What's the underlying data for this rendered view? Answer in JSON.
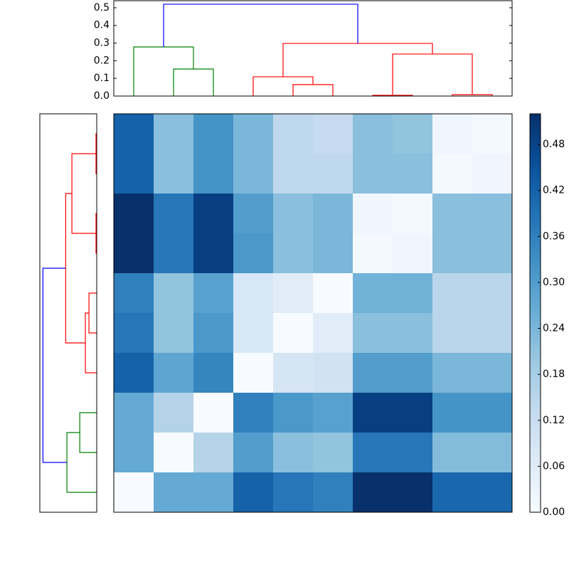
{
  "chart_data": [
    {
      "type": "dendrogram",
      "orientation": "top",
      "xlim": [
        0,
        100
      ],
      "ylim": [
        0,
        0.54
      ],
      "yticks": [
        {
          "value": 0,
          "label": "0.0"
        },
        {
          "value": 0.1,
          "label": "0.1"
        },
        {
          "value": 0.2,
          "label": "0.2"
        },
        {
          "value": 0.3,
          "label": "0.3"
        },
        {
          "value": 0.4,
          "label": "0.4"
        },
        {
          "value": 0.5,
          "label": "0.5"
        }
      ],
      "links": [
        {
          "color": "#008000",
          "icoord": [
            15,
            15,
            25,
            25
          ],
          "dcoord": [
            0,
            0.153,
            0.153,
            0
          ]
        },
        {
          "color": "#008000",
          "icoord": [
            5,
            5,
            20,
            20
          ],
          "dcoord": [
            0,
            0.278,
            0.278,
            0.153
          ]
        },
        {
          "color": "#ff0000",
          "icoord": [
            45,
            45,
            55,
            55
          ],
          "dcoord": [
            0,
            0.065,
            0.065,
            0
          ]
        },
        {
          "color": "#ff0000",
          "icoord": [
            35,
            35,
            50,
            50
          ],
          "dcoord": [
            0,
            0.109,
            0.109,
            0.065
          ]
        },
        {
          "color": "#ff0000",
          "icoord": [
            65,
            65,
            75,
            75
          ],
          "dcoord": [
            0,
            0.004,
            0.004,
            0
          ]
        },
        {
          "color": "#ff0000",
          "icoord": [
            85,
            85,
            95,
            95
          ],
          "dcoord": [
            0,
            0.008,
            0.008,
            0
          ]
        },
        {
          "color": "#ff0000",
          "icoord": [
            70,
            70,
            90,
            90
          ],
          "dcoord": [
            0.004,
            0.238,
            0.238,
            0.008
          ]
        },
        {
          "color": "#ff0000",
          "icoord": [
            42.5,
            42.5,
            80,
            80
          ],
          "dcoord": [
            0.109,
            0.298,
            0.298,
            0.238
          ]
        },
        {
          "color": "#0000ff",
          "icoord": [
            12.5,
            12.5,
            61.25,
            61.25
          ],
          "dcoord": [
            0.278,
            0.52,
            0.52,
            0.298
          ]
        }
      ]
    },
    {
      "type": "dendrogram",
      "orientation": "left",
      "xlim": [
        0.55,
        0
      ],
      "ylim": [
        0,
        100
      ],
      "links": [
        {
          "color": "#ff0000",
          "icoord": [
            85,
            85,
            95,
            95
          ],
          "dcoord": [
            0,
            0.007,
            0.007,
            0
          ]
        },
        {
          "color": "#ff0000",
          "icoord": [
            65,
            65,
            75,
            75
          ],
          "dcoord": [
            0,
            0.007,
            0.007,
            0
          ]
        },
        {
          "color": "#ff0000",
          "icoord": [
            70,
            70,
            90,
            90
          ],
          "dcoord": [
            0.007,
            0.24,
            0.24,
            0.007
          ]
        },
        {
          "color": "#ff0000",
          "icoord": [
            45,
            45,
            55,
            55
          ],
          "dcoord": [
            0,
            0.075,
            0.075,
            0
          ]
        },
        {
          "color": "#ff0000",
          "icoord": [
            35,
            35,
            50,
            50
          ],
          "dcoord": [
            0,
            0.11,
            0.11,
            0.075
          ]
        },
        {
          "color": "#ff0000",
          "icoord": [
            42.5,
            42.5,
            80,
            80
          ],
          "dcoord": [
            0.11,
            0.3,
            0.3,
            0.24
          ]
        },
        {
          "color": "#008000",
          "icoord": [
            15,
            15,
            25,
            25
          ],
          "dcoord": [
            0,
            0.164,
            0.164,
            0
          ]
        },
        {
          "color": "#008000",
          "icoord": [
            5,
            5,
            20,
            20
          ],
          "dcoord": [
            0,
            0.288,
            0.288,
            0.164
          ]
        },
        {
          "color": "#0000ff",
          "icoord": [
            12.5,
            12.5,
            61.25,
            61.25
          ],
          "dcoord": [
            0.288,
            0.52,
            0.52,
            0.3
          ]
        }
      ]
    },
    {
      "type": "heatmap",
      "colormap": "Blues",
      "clim": [
        0,
        0.52
      ],
      "cticks": [
        {
          "value": 0,
          "label": "0.00"
        },
        {
          "value": 0.06,
          "label": "0.06"
        },
        {
          "value": 0.12,
          "label": "0.12"
        },
        {
          "value": 0.18,
          "label": "0.18"
        },
        {
          "value": 0.24,
          "label": "0.24"
        },
        {
          "value": 0.3,
          "label": "0.30"
        },
        {
          "value": 0.36,
          "label": "0.36"
        },
        {
          "value": 0.42,
          "label": "0.42"
        },
        {
          "value": 0.48,
          "label": "0.48"
        }
      ],
      "z": [
        [
          0.42,
          0.22,
          0.32,
          0.24,
          0.14,
          0.13,
          0.22,
          0.21,
          0.02,
          0.01
        ],
        [
          0.42,
          0.22,
          0.32,
          0.24,
          0.14,
          0.14,
          0.22,
          0.22,
          0.01,
          0.02
        ],
        [
          0.52,
          0.38,
          0.49,
          0.3,
          0.22,
          0.24,
          0.02,
          0.01,
          0.22,
          0.22
        ],
        [
          0.52,
          0.38,
          0.49,
          0.31,
          0.22,
          0.24,
          0.01,
          0.02,
          0.22,
          0.22
        ],
        [
          0.36,
          0.21,
          0.29,
          0.08,
          0.06,
          0,
          0.25,
          0.25,
          0.15,
          0.15
        ],
        [
          0.38,
          0.21,
          0.31,
          0.08,
          0,
          0.06,
          0.22,
          0.22,
          0.15,
          0.15
        ],
        [
          0.42,
          0.28,
          0.35,
          0,
          0.09,
          0.1,
          0.3,
          0.3,
          0.24,
          0.24
        ],
        [
          0.27,
          0.16,
          0,
          0.36,
          0.31,
          0.29,
          0.49,
          0.49,
          0.32,
          0.32
        ],
        [
          0.27,
          0,
          0.16,
          0.3,
          0.22,
          0.21,
          0.38,
          0.38,
          0.23,
          0.23
        ],
        [
          0,
          0.27,
          0.27,
          0.42,
          0.38,
          0.36,
          0.52,
          0.52,
          0.41,
          0.41
        ]
      ]
    }
  ]
}
